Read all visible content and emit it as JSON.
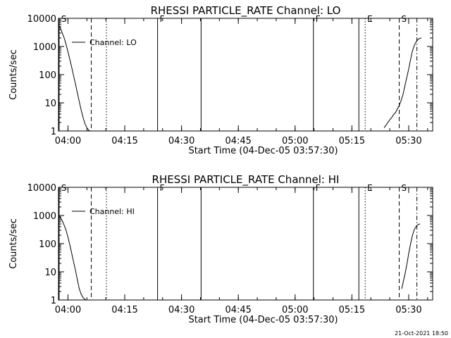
{
  "footer": {
    "timestamp": "21-Oct-2021 18:50"
  },
  "chart_data": [
    {
      "type": "line",
      "title": "RHESSI PARTICLE_RATE Channel: LO",
      "xlabel": "Start Time (04-Dec-05 03:57:30)",
      "ylabel": "Counts/sec",
      "xlim": [
        "03:57:30",
        "05:36:20"
      ],
      "ylim": [
        1,
        10000
      ],
      "yscale": "log",
      "grid": false,
      "legend": "top-left",
      "x_ticks": [
        "04:00",
        "04:15",
        "04:30",
        "04:45",
        "05:00",
        "05:15",
        "05:30"
      ],
      "y_ticks": [
        "1",
        "10",
        "100",
        "1000",
        "10000"
      ],
      "series": [
        {
          "name": "Channel: LO",
          "x": [
            "03:57:30",
            "03:58:00",
            "03:58:30",
            "03:59:00",
            "03:59:30",
            "04:00:00",
            "04:00:30",
            "04:01:00",
            "04:01:30",
            "04:02:00",
            "04:02:30",
            "04:03:00",
            "04:03:30",
            "04:04:00",
            "04:04:30",
            "04:05:00",
            "04:05:30",
            "04:05:50",
            "05:23:30",
            "05:24:00",
            "05:24:30",
            "05:25:00",
            "05:25:30",
            "05:26:00",
            "05:26:30",
            "05:27:00",
            "05:27:30",
            "05:28:00",
            "05:28:30",
            "05:29:00",
            "05:29:30",
            "05:30:00",
            "05:30:30",
            "05:31:00",
            "05:31:30",
            "05:32:00",
            "05:32:30",
            "05:33:00",
            "05:33:20"
          ],
          "values": [
            6000,
            4500,
            3000,
            2000,
            1200,
            650,
            350,
            180,
            90,
            45,
            22,
            11,
            5.5,
            3,
            1.8,
            1.3,
            1.05,
            1,
            1.3,
            1.6,
            2,
            2.5,
            3,
            3.8,
            4.5,
            6,
            8,
            12,
            20,
            40,
            80,
            160,
            350,
            700,
            1100,
            1500,
            1800,
            1950,
            2000
          ]
        }
      ],
      "markers": [
        {
          "label": "S",
          "time": "03:57:40",
          "style": "solid"
        },
        {
          "label": "",
          "time": "04:06:10",
          "style": "dashed"
        },
        {
          "label": "",
          "time": "04:10:10",
          "style": "dotted"
        },
        {
          "label": "F",
          "time": "04:23:40",
          "style": "solid"
        },
        {
          "label": "",
          "time": "04:35:10",
          "style": "solid"
        },
        {
          "label": "F",
          "time": "05:04:50",
          "style": "solid"
        },
        {
          "label": "",
          "time": "05:16:50",
          "style": "solid"
        },
        {
          "label": "E",
          "time": "05:18:30",
          "style": "dotted"
        },
        {
          "label": "S",
          "time": "05:27:30",
          "style": "dashed"
        },
        {
          "label": "",
          "time": "05:32:10",
          "style": "dashdot"
        }
      ]
    },
    {
      "type": "line",
      "title": "RHESSI PARTICLE_RATE Channel: HI",
      "xlabel": "Start Time (04-Dec-05 03:57:30)",
      "ylabel": "Counts/sec",
      "xlim": [
        "03:57:30",
        "05:36:20"
      ],
      "ylim": [
        1,
        10000
      ],
      "yscale": "log",
      "grid": false,
      "legend": "top-left",
      "x_ticks": [
        "04:00",
        "04:15",
        "04:30",
        "04:45",
        "05:00",
        "05:15",
        "05:30"
      ],
      "y_ticks": [
        "1",
        "10",
        "100",
        "1000",
        "10000"
      ],
      "series": [
        {
          "name": "Channel: HI",
          "x": [
            "03:57:30",
            "03:58:00",
            "03:58:30",
            "03:59:00",
            "03:59:30",
            "04:00:00",
            "04:00:30",
            "04:01:00",
            "04:01:30",
            "04:02:00",
            "04:02:30",
            "04:03:00",
            "04:03:30",
            "04:04:00",
            "04:04:30",
            "04:04:50",
            "05:28:10",
            "05:28:30",
            "05:29:00",
            "05:29:30",
            "05:30:00",
            "05:30:30",
            "05:31:00",
            "05:31:30",
            "05:32:00",
            "05:32:30",
            "05:33:00"
          ],
          "values": [
            1000,
            850,
            650,
            450,
            300,
            170,
            90,
            45,
            22,
            11,
            5,
            2.5,
            1.6,
            1.2,
            1.05,
            1,
            2.5,
            4,
            8,
            18,
            45,
            100,
            200,
            320,
            420,
            480,
            500
          ]
        }
      ],
      "markers": [
        {
          "label": "S",
          "time": "03:57:40",
          "style": "solid"
        },
        {
          "label": "",
          "time": "04:06:10",
          "style": "dashed"
        },
        {
          "label": "",
          "time": "04:10:10",
          "style": "dotted"
        },
        {
          "label": "F",
          "time": "04:23:40",
          "style": "solid"
        },
        {
          "label": "",
          "time": "04:35:10",
          "style": "solid"
        },
        {
          "label": "F",
          "time": "05:04:50",
          "style": "solid"
        },
        {
          "label": "",
          "time": "05:16:50",
          "style": "solid"
        },
        {
          "label": "E",
          "time": "05:18:30",
          "style": "dotted"
        },
        {
          "label": "S",
          "time": "05:27:30",
          "style": "dashed"
        },
        {
          "label": "",
          "time": "05:32:10",
          "style": "dashdot"
        }
      ]
    }
  ]
}
